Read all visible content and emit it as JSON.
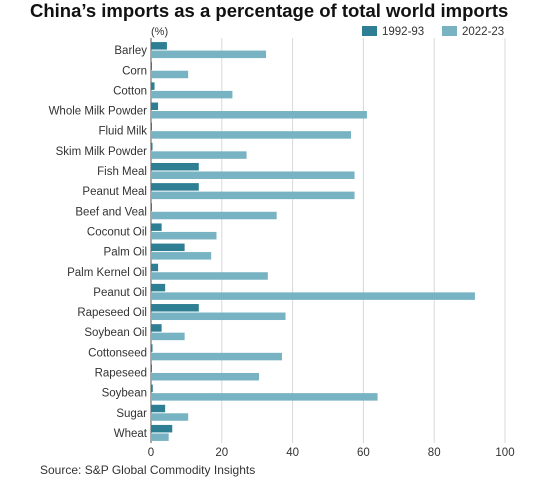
{
  "title": "China’s imports as a percentage of total world imports",
  "source": "Source: S&P Global Commodity Insights",
  "colors": {
    "series_1992": "#2f7f94",
    "series_2022": "#77b3c2",
    "grid": "#d9d9d9",
    "axis": "#555555",
    "text": "#333333"
  },
  "chart_data": {
    "type": "bar",
    "orientation": "horizontal",
    "title": "China’s imports as a percentage of total world imports",
    "xlabel": "",
    "ylabel": "",
    "unit_label": "(%)",
    "xlim": [
      0,
      100
    ],
    "xticks": [
      0,
      20,
      40,
      60,
      80,
      100
    ],
    "grid": "vertical",
    "legend_position": "top-right",
    "categories": [
      "Barley",
      "Corn",
      "Cotton",
      "Whole Milk Powder",
      "Fluid Milk",
      "Skim Milk Powder",
      "Fish Meal",
      "Peanut Meal",
      "Beef and Veal",
      "Coconut Oil",
      "Palm Oil",
      "Palm Kernel Oil",
      "Peanut Oil",
      "Rapeseed Oil",
      "Soybean Oil",
      "Cottonseed",
      "Rapeseed",
      "Soybean",
      "Sugar",
      "Wheat"
    ],
    "series": [
      {
        "name": "1992-93",
        "values": [
          4.5,
          0,
          1,
          2,
          0,
          0.2,
          13.5,
          13.5,
          0,
          3,
          9.5,
          2,
          4,
          13.5,
          3,
          0.2,
          0,
          0.5,
          4,
          6
        ]
      },
      {
        "name": "2022-23",
        "values": [
          32.5,
          10.5,
          23,
          61,
          56.5,
          27,
          57.5,
          57.5,
          35.5,
          18.5,
          17,
          33,
          91.5,
          38,
          9.5,
          37,
          30.5,
          64,
          10.5,
          5
        ]
      }
    ]
  }
}
